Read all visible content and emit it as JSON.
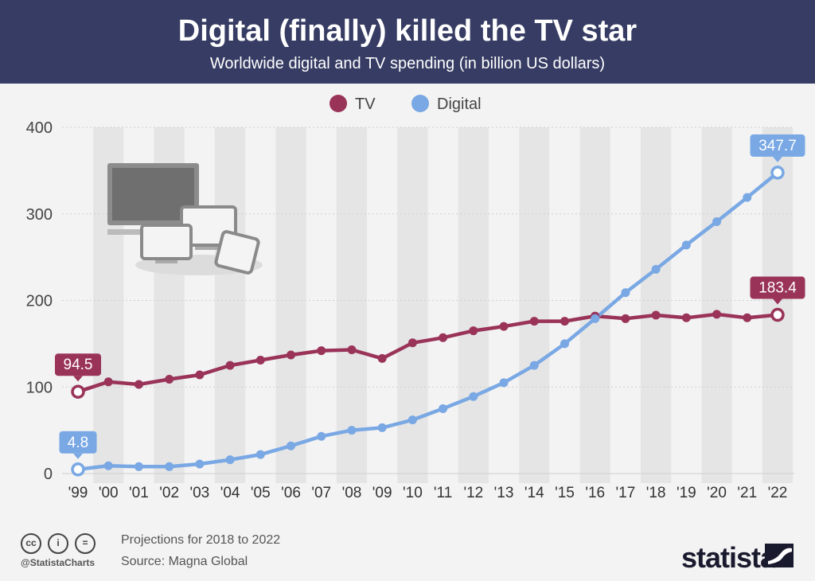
{
  "header": {
    "title": "Digital (finally) killed the TV star",
    "subtitle": "Worldwide digital and TV spending (in billion US dollars)"
  },
  "colors": {
    "header_bg": "#363c63",
    "tv": "#9a3358",
    "digital": "#79a8e4",
    "band": "#e5e5e5",
    "band_highlight": "#d5d5d5"
  },
  "chart_data": {
    "type": "line",
    "x": [
      "'99",
      "'00",
      "'01",
      "'02",
      "'03",
      "'04",
      "'05",
      "'06",
      "'07",
      "'08",
      "'09",
      "'10",
      "'11",
      "'12",
      "'13",
      "'14",
      "'15",
      "'16",
      "'17",
      "'18",
      "'19",
      "'20",
      "'21",
      "'22"
    ],
    "series": [
      {
        "name": "TV",
        "color": "#9a3358",
        "values": [
          94.5,
          106,
          103,
          109,
          114,
          125,
          131,
          137,
          142,
          143,
          133,
          151,
          157,
          165,
          170,
          176,
          176,
          182,
          179,
          183,
          180,
          184,
          180,
          183.4
        ]
      },
      {
        "name": "Digital",
        "color": "#79a8e4",
        "values": [
          4.8,
          9,
          8,
          8,
          11,
          16,
          22,
          32,
          43,
          50,
          53,
          62,
          75,
          89,
          105,
          125,
          150,
          179,
          209,
          236,
          264,
          291,
          319,
          347.7
        ]
      }
    ],
    "ylim": [
      0,
      400
    ],
    "yticks": [
      0,
      100,
      200,
      300,
      400
    ],
    "grid": true,
    "legend_position": "top-center",
    "data_labels": [
      {
        "series": "TV",
        "index": 0,
        "text": "94.5"
      },
      {
        "series": "TV",
        "index": 23,
        "text": "183.4"
      },
      {
        "series": "Digital",
        "index": 0,
        "text": "4.8"
      },
      {
        "series": "Digital",
        "index": 23,
        "text": "347.7"
      }
    ],
    "highlighted_column": "'17"
  },
  "illustration": {
    "icon": "devices-icon"
  },
  "footer": {
    "cc_icons": [
      "cc",
      "i",
      "="
    ],
    "handle": "@StatistaCharts",
    "note": "Projections for 2018 to 2022",
    "source": "Source: Magna Global",
    "brand": "statista"
  }
}
